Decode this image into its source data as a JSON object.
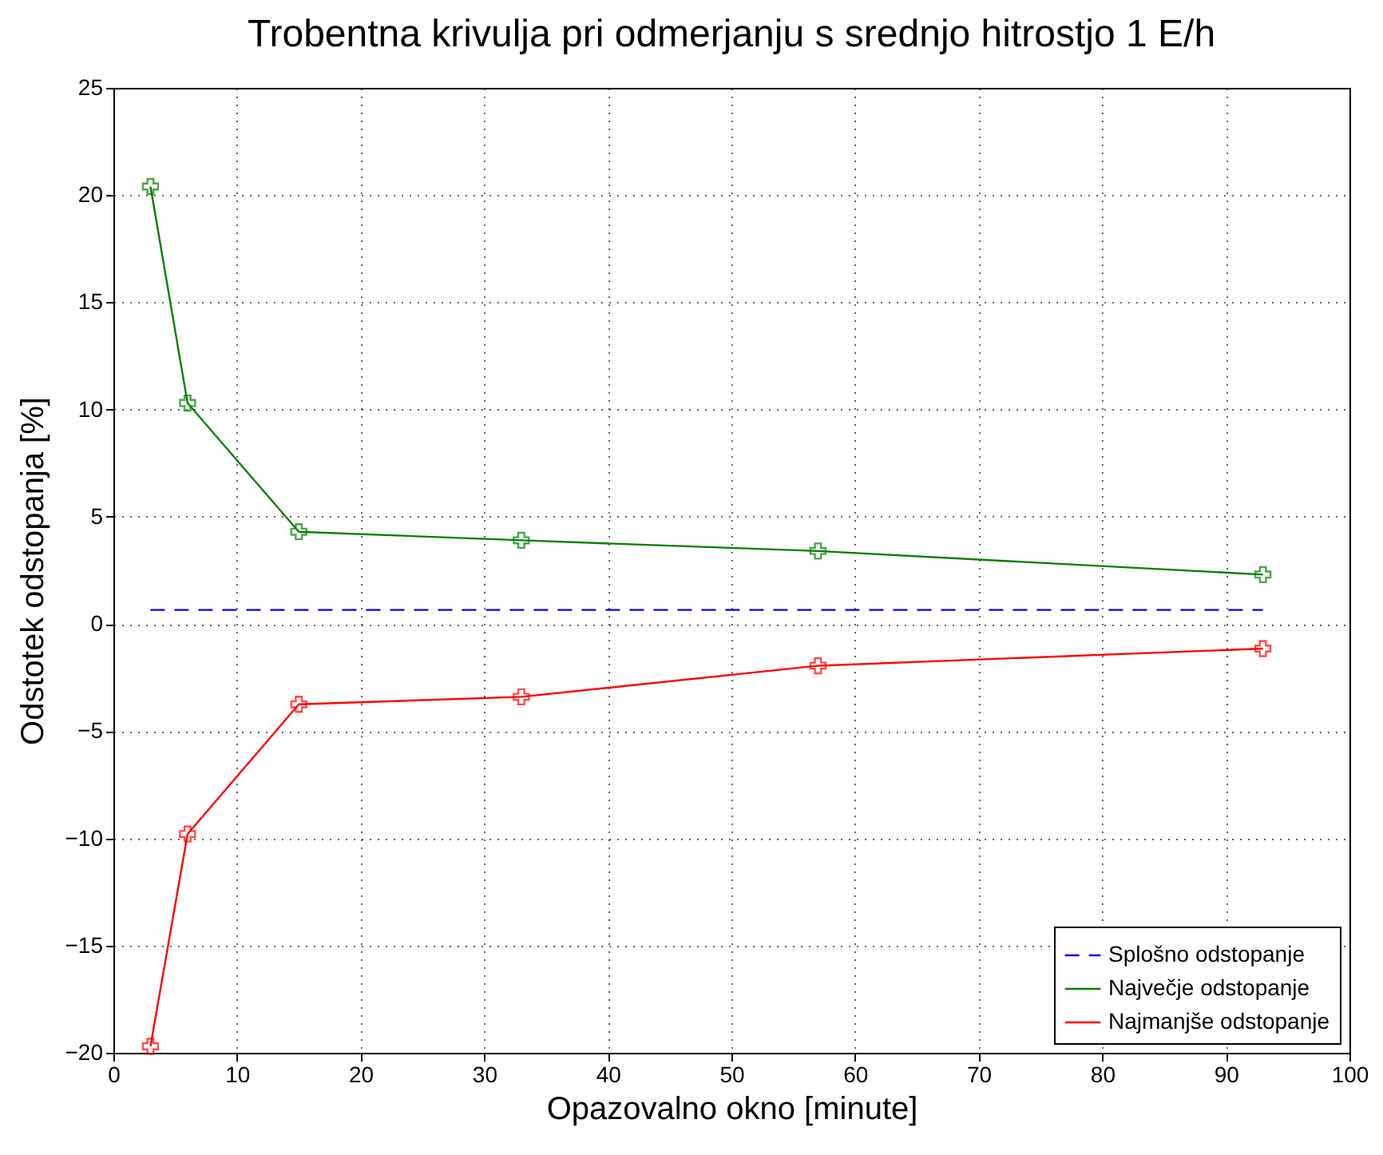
{
  "chart_data": {
    "type": "line",
    "title": "Trobentna krivulja pri odmerjanju s srednjo hitrostjo 1 E/h",
    "xlabel": "Opazovalno okno [minute]",
    "ylabel": "Odstotek odstopanja [%]",
    "xlim": [
      0,
      100
    ],
    "xticks": [
      0,
      10,
      20,
      30,
      40,
      50,
      60,
      70,
      80,
      90,
      100
    ],
    "ylim": [
      -20,
      25
    ],
    "yticks": [
      -20,
      -15,
      -10,
      -5,
      0,
      5,
      10,
      15,
      20,
      25
    ],
    "grid": true,
    "legend": "bottom right",
    "series": [
      {
        "name": "Splošno odstopanje",
        "color": "#0000ff",
        "x": [
          3,
          93
        ],
        "values": [
          0.65,
          0.65
        ],
        "line_style": "dashed",
        "marker": "none"
      },
      {
        "name": "Največje odstopanje",
        "color": "#008000",
        "x": [
          3,
          6,
          15,
          33,
          57,
          93
        ],
        "values": [
          20.4,
          10.3,
          4.3,
          3.9,
          3.4,
          2.3
        ],
        "line_style": "solid",
        "marker": "cross"
      },
      {
        "name": "Najmanjše odstopanje",
        "color": "#ff0000",
        "x": [
          3,
          6,
          15,
          33,
          57,
          93
        ],
        "values": [
          -19.7,
          -9.8,
          -3.75,
          -3.4,
          -1.95,
          -1.15
        ],
        "line_style": "solid",
        "marker": "cross"
      }
    ]
  }
}
